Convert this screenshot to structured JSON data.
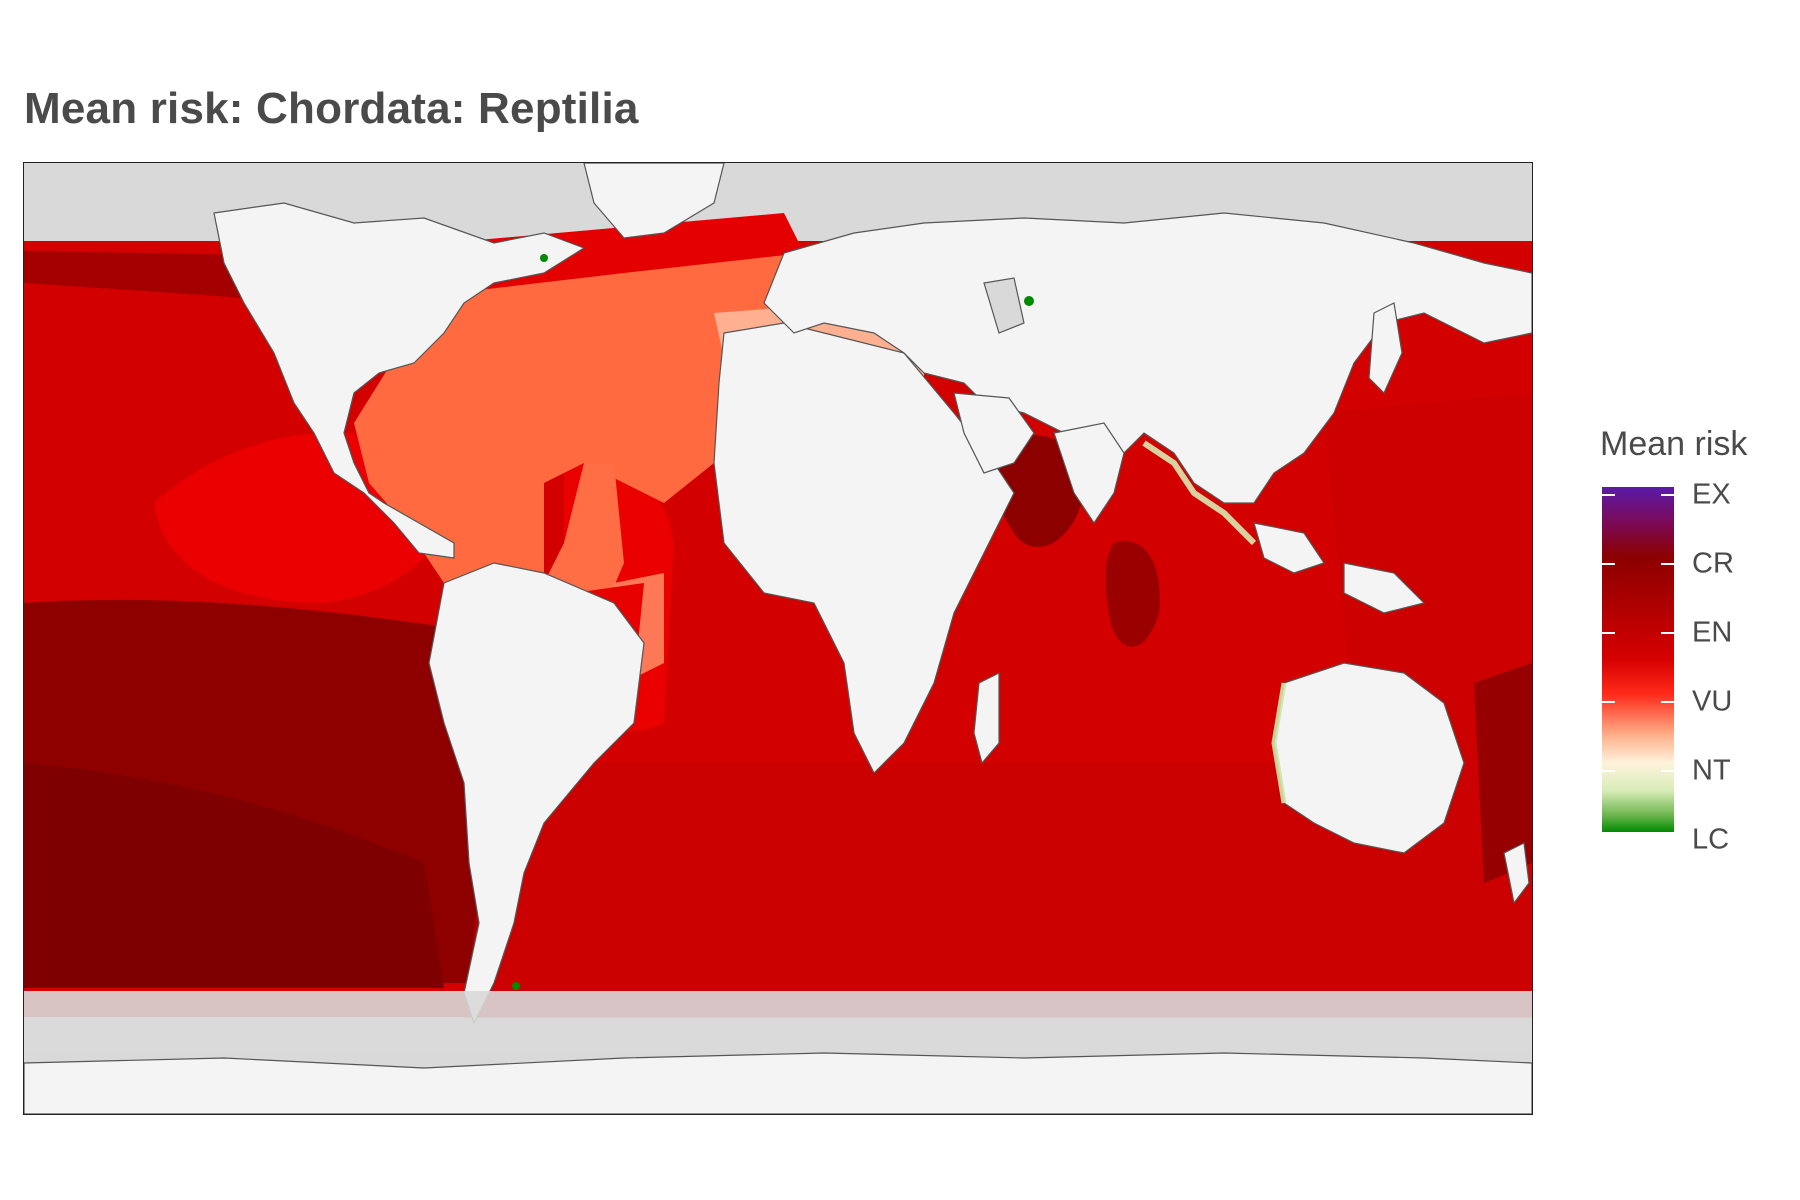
{
  "title": "Mean risk: Chordata: Reptilia",
  "legend": {
    "title": "Mean risk",
    "categories": [
      "EX",
      "CR",
      "EN",
      "VU",
      "NT",
      "LC"
    ],
    "colors": {
      "EX": "#5a1aa8",
      "CR": "#8b0000",
      "EN": "#d00000",
      "VU": "#ff1a10",
      "NT": "#fff3dc",
      "LC": "#008a00"
    }
  },
  "map": {
    "projection": "equirectangular world map",
    "land_color": "#f4f4f4",
    "no_data_color": "#d9d9d9",
    "coastline_color": "#555555"
  }
}
